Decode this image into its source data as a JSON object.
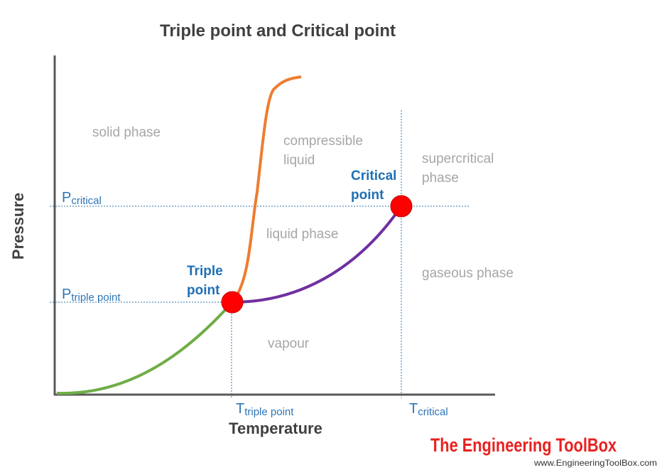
{
  "title": "Triple point and Critical point",
  "axes": {
    "y_label": "Pressure",
    "x_label": "Temperature"
  },
  "regions": {
    "solid": "solid phase",
    "compressible_line1": "compressible",
    "compressible_line2": "liquid",
    "liquid": "liquid phase",
    "supercritical_line1": "supercritical",
    "supercritical_line2": "phase",
    "gaseous": "gaseous phase",
    "vapour": "vapour"
  },
  "points": {
    "triple_line1": "Triple",
    "triple_line2": "point",
    "critical_line1": "Critical",
    "critical_line2": "point"
  },
  "ticks": {
    "p_critical_main": "P",
    "p_critical_sub": "critical",
    "p_triple_main": "P",
    "p_triple_sub": "triple point",
    "t_triple_main": "T",
    "t_triple_sub": "triple point",
    "t_critical_main": "T",
    "t_critical_sub": "critical"
  },
  "branding": {
    "logo": "The Engineering ToolBox",
    "url": "www.EngineeringToolBox.com"
  },
  "colors": {
    "title": "#404040",
    "axis_label": "#404040",
    "region_text": "#a6a6a6",
    "point_label": "#1f6fb4",
    "tick_label": "#2e75b6",
    "guide_line": "#2e75b6",
    "sublimation_curve": "#70ad47",
    "melting_curve": "#ed7d31",
    "vaporization_curve": "#7030a0",
    "point_marker": "#ff0000",
    "axis": "#595959",
    "logo": "#e8211f"
  }
}
